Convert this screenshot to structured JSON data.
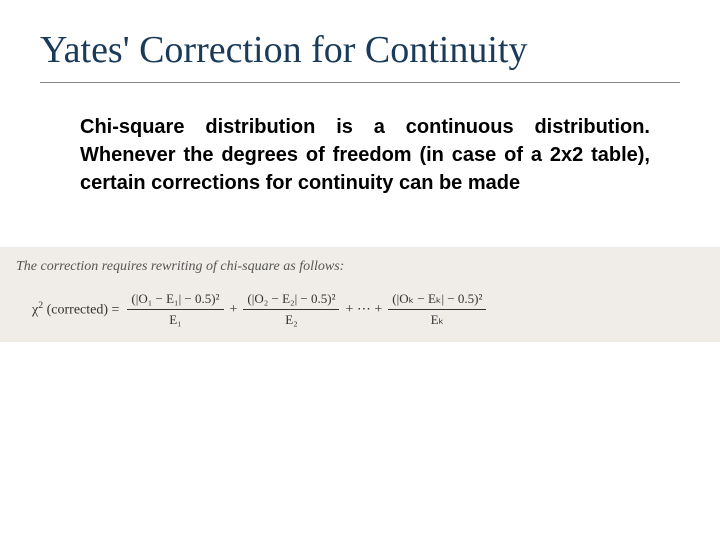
{
  "title": "Yates' Correction for Continuity",
  "body": "Chi-square distribution is a continuous distribution. Whenever the degrees of freedom (in case of a 2x2 table), certain corrections for continuity can be made",
  "formula": {
    "intro": "The correction requires rewriting of chi-square as follows:",
    "lhs_chi": "χ",
    "lhs_sup": "2",
    "lhs_paren": " (corrected) = ",
    "terms": [
      {
        "num": "(|O₁ − E₁| − 0.5)²",
        "den": "E₁"
      },
      {
        "num": "(|O₂ − E₂| − 0.5)²",
        "den": "E₂"
      },
      {
        "num": "(|Oₖ − Eₖ| − 0.5)²",
        "den": "Eₖ"
      }
    ],
    "plus": "+",
    "dots": "+ ⋯ +"
  },
  "colors": {
    "title_color": "#1a3a5a",
    "formula_bg": "#f0ede8",
    "text_color": "#000000"
  }
}
